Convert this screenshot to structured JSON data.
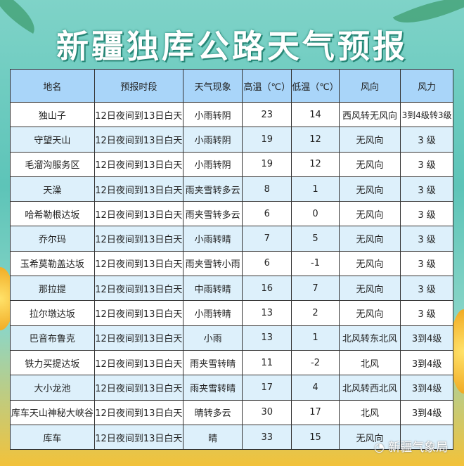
{
  "title": "新疆独库公路天气预报",
  "headers": [
    "地名",
    "预报时段",
    "天气现象",
    "高温（℃）",
    "低温（℃）",
    "风向",
    "风力"
  ],
  "rows": [
    [
      "独山子",
      "12日夜间到13日白天",
      "小雨转阴",
      "23",
      "14",
      "西风转无风向",
      "3到4级转3级"
    ],
    [
      "守望天山",
      "12日夜间到13日白天",
      "小雨转阴",
      "19",
      "12",
      "无风向",
      "3 级"
    ],
    [
      "毛溜沟服务区",
      "12日夜间到13日白天",
      "小雨转阴",
      "19",
      "12",
      "无风向",
      "3 级"
    ],
    [
      "天澡",
      "12日夜间到13日白天",
      "雨夹雪转多云",
      "8",
      "1",
      "无风向",
      "3 级"
    ],
    [
      "哈希勒根达坂",
      "12日夜间到13日白天",
      "雨夹雪转多云",
      "6",
      "0",
      "无风向",
      "3 级"
    ],
    [
      "乔尔玛",
      "12日夜间到13日白天",
      "小雨转晴",
      "7",
      "5",
      "无风向",
      "3 级"
    ],
    [
      "玉希莫勒盖达坂",
      "12日夜间到13日白天",
      "雨夹雪转小雨",
      "6",
      "-1",
      "无风向",
      "3 级"
    ],
    [
      "那拉提",
      "12日夜间到13日白天",
      "中雨转晴",
      "16",
      "7",
      "无风向",
      "3 级"
    ],
    [
      "拉尔墩达坂",
      "12日夜间到13日白天",
      "小雨转晴",
      "13",
      "2",
      "无风向",
      "3 级"
    ],
    [
      "巴音布鲁克",
      "12日夜间到13日白天",
      "小雨",
      "13",
      "1",
      "北风转东北风",
      "3到4级"
    ],
    [
      "铁力买提达坂",
      "12日夜间到13日白天",
      "雨夹雪转晴",
      "11",
      "-2",
      "北风",
      "3到4级"
    ],
    [
      "大小龙池",
      "12日夜间到13日白天",
      "雨夹雪转晴",
      "17",
      "4",
      "北风转西北风",
      "3到4级"
    ],
    [
      "库车天山神秘大峡谷",
      "12日夜间到13日白天",
      "晴转多云",
      "30",
      "17",
      "北风",
      "3到4级"
    ],
    [
      "库车",
      "12日夜间到13日白天",
      "晴",
      "33",
      "15",
      "无风向",
      ""
    ]
  ],
  "watermark": "新疆气象局"
}
